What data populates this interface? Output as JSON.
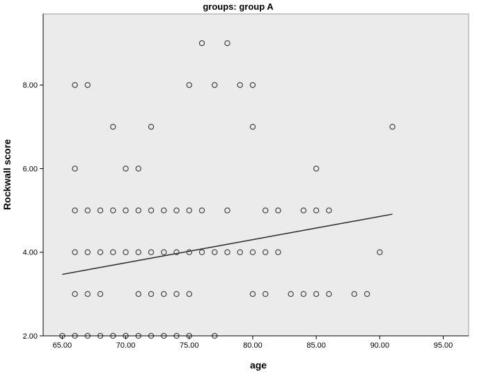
{
  "chart_data": {
    "type": "scatter",
    "title": "groups: group A",
    "xlabel": "age",
    "ylabel": "Rockwall score",
    "xlim": [
      63.5,
      97
    ],
    "ylim": [
      2.0,
      9.7
    ],
    "x_ticks": [
      65,
      70,
      75,
      80,
      85,
      90,
      95
    ],
    "x_tick_labels": [
      "65.00",
      "70.00",
      "75.00",
      "80.00",
      "85.00",
      "90.00",
      "95.00"
    ],
    "y_ticks": [
      2,
      4,
      6,
      8
    ],
    "y_tick_labels": [
      "2.00",
      "4.00",
      "6.00",
      "8.00"
    ],
    "grid": false,
    "colors": {
      "plot_background": "#ebebeb",
      "marker": "#4d4d4d",
      "fit_line": "#333333",
      "axis": "#000000"
    },
    "points": [
      {
        "x": 76,
        "y": 9
      },
      {
        "x": 78,
        "y": 9
      },
      {
        "x": 66,
        "y": 8
      },
      {
        "x": 67,
        "y": 8
      },
      {
        "x": 75,
        "y": 8
      },
      {
        "x": 77,
        "y": 8
      },
      {
        "x": 79,
        "y": 8
      },
      {
        "x": 80,
        "y": 8
      },
      {
        "x": 69,
        "y": 7
      },
      {
        "x": 72,
        "y": 7
      },
      {
        "x": 80,
        "y": 7
      },
      {
        "x": 91,
        "y": 7
      },
      {
        "x": 66,
        "y": 6
      },
      {
        "x": 70,
        "y": 6
      },
      {
        "x": 71,
        "y": 6
      },
      {
        "x": 85,
        "y": 6
      },
      {
        "x": 66,
        "y": 5
      },
      {
        "x": 67,
        "y": 5
      },
      {
        "x": 68,
        "y": 5
      },
      {
        "x": 69,
        "y": 5
      },
      {
        "x": 70,
        "y": 5
      },
      {
        "x": 71,
        "y": 5
      },
      {
        "x": 72,
        "y": 5
      },
      {
        "x": 73,
        "y": 5
      },
      {
        "x": 74,
        "y": 5
      },
      {
        "x": 75,
        "y": 5
      },
      {
        "x": 76,
        "y": 5
      },
      {
        "x": 78,
        "y": 5
      },
      {
        "x": 81,
        "y": 5
      },
      {
        "x": 82,
        "y": 5
      },
      {
        "x": 84,
        "y": 5
      },
      {
        "x": 85,
        "y": 5
      },
      {
        "x": 86,
        "y": 5
      },
      {
        "x": 66,
        "y": 4
      },
      {
        "x": 67,
        "y": 4
      },
      {
        "x": 68,
        "y": 4
      },
      {
        "x": 69,
        "y": 4
      },
      {
        "x": 70,
        "y": 4
      },
      {
        "x": 71,
        "y": 4
      },
      {
        "x": 72,
        "y": 4
      },
      {
        "x": 73,
        "y": 4
      },
      {
        "x": 74,
        "y": 4
      },
      {
        "x": 75,
        "y": 4
      },
      {
        "x": 76,
        "y": 4
      },
      {
        "x": 77,
        "y": 4
      },
      {
        "x": 78,
        "y": 4
      },
      {
        "x": 79,
        "y": 4
      },
      {
        "x": 80,
        "y": 4
      },
      {
        "x": 81,
        "y": 4
      },
      {
        "x": 82,
        "y": 4
      },
      {
        "x": 90,
        "y": 4
      },
      {
        "x": 66,
        "y": 3
      },
      {
        "x": 67,
        "y": 3
      },
      {
        "x": 68,
        "y": 3
      },
      {
        "x": 71,
        "y": 3
      },
      {
        "x": 72,
        "y": 3
      },
      {
        "x": 73,
        "y": 3
      },
      {
        "x": 74,
        "y": 3
      },
      {
        "x": 75,
        "y": 3
      },
      {
        "x": 80,
        "y": 3
      },
      {
        "x": 81,
        "y": 3
      },
      {
        "x": 83,
        "y": 3
      },
      {
        "x": 84,
        "y": 3
      },
      {
        "x": 85,
        "y": 3
      },
      {
        "x": 86,
        "y": 3
      },
      {
        "x": 88,
        "y": 3
      },
      {
        "x": 89,
        "y": 3
      },
      {
        "x": 65,
        "y": 2
      },
      {
        "x": 66,
        "y": 2
      },
      {
        "x": 67,
        "y": 2
      },
      {
        "x": 68,
        "y": 2
      },
      {
        "x": 69,
        "y": 2
      },
      {
        "x": 70,
        "y": 2
      },
      {
        "x": 71,
        "y": 2
      },
      {
        "x": 72,
        "y": 2
      },
      {
        "x": 73,
        "y": 2
      },
      {
        "x": 74,
        "y": 2
      },
      {
        "x": 75,
        "y": 2
      },
      {
        "x": 77,
        "y": 2
      }
    ],
    "fit_line": {
      "x": [
        65,
        91
      ],
      "y": [
        3.47,
        4.91
      ]
    }
  }
}
